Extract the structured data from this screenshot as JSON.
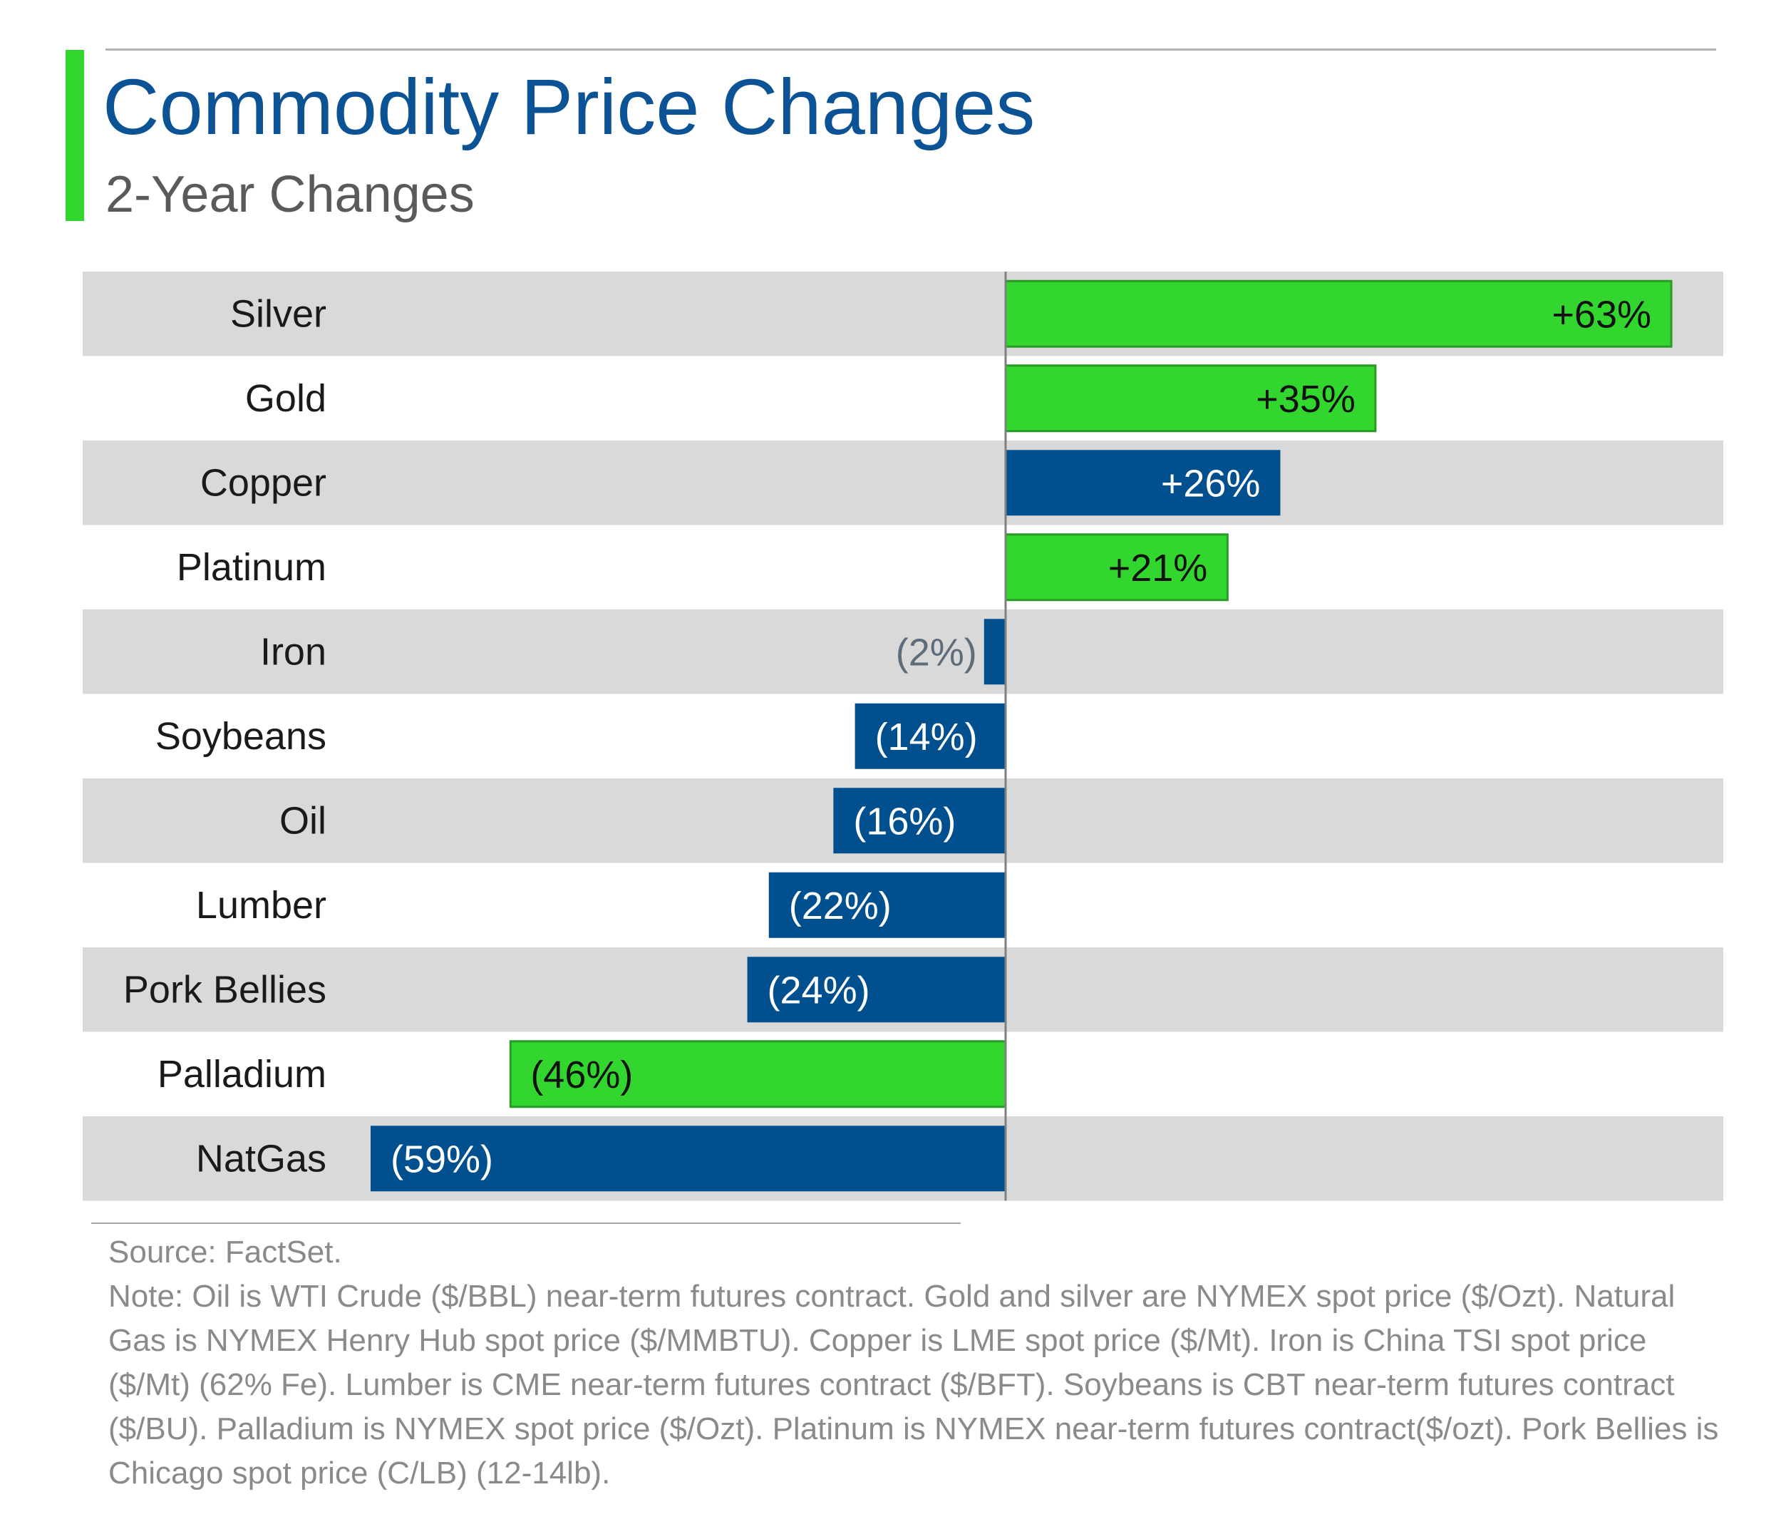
{
  "header": {
    "title": "Commodity Price Changes",
    "subtitle": "2-Year Changes"
  },
  "colors": {
    "accent_green": "#33d62f",
    "bar_green": "#33d62f",
    "bar_blue": "#00508f",
    "row_band": "#d9d9d9",
    "title_blue": "#0b5394"
  },
  "chart_data": {
    "type": "bar",
    "orientation": "horizontal",
    "title": "Commodity Price Changes",
    "subtitle": "2-Year Changes",
    "categories": [
      "Silver",
      "Gold",
      "Copper",
      "Platinum",
      "Iron",
      "Soybeans",
      "Oil",
      "Lumber",
      "Pork Bellies",
      "Palladium",
      "NatGas"
    ],
    "values": [
      63,
      35,
      26,
      21,
      -2,
      -14,
      -16,
      -22,
      -24,
      -46,
      -59
    ],
    "labels": [
      "+63%",
      "+35%",
      "+26%",
      "+21%",
      "(2%)",
      "(14%)",
      "(16%)",
      "(22%)",
      "(24%)",
      "(46%)",
      "(59%)"
    ],
    "bar_colors": [
      "#33d62f",
      "#33d62f",
      "#00508f",
      "#33d62f",
      "#00508f",
      "#00508f",
      "#00508f",
      "#00508f",
      "#00508f",
      "#33d62f",
      "#00508f"
    ],
    "unit": "%",
    "xlim": [
      -60,
      63
    ],
    "grid": false,
    "legend": "none"
  },
  "footnote": {
    "source": "Source: FactSet.",
    "note": "Note: Oil is WTI Crude ($/BBL) near-term futures contract. Gold and silver are NYMEX spot price ($/Ozt). Natural Gas is NYMEX Henry Hub spot price ($/MMBTU). Copper is LME spot price ($/Mt). Iron is China TSI spot price ($/Mt) (62% Fe). Lumber is CME near-term futures contract ($/BFT). Soybeans is CBT near-term futures contract ($/BU). Palladium is NYMEX spot price ($/Ozt). Platinum is NYMEX near-term futures contract($/ozt). Pork Bellies is Chicago spot price (C/LB) (12-14lb)."
  }
}
